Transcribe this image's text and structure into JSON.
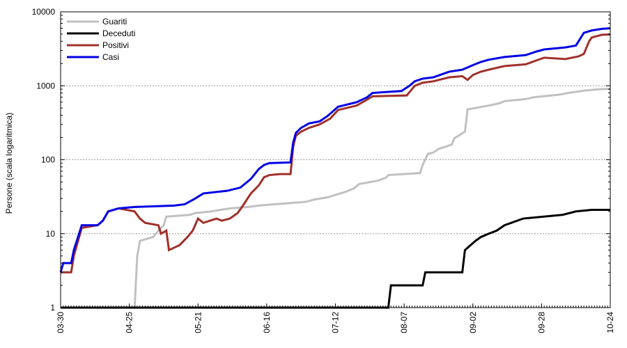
{
  "chart_data": {
    "type": "line",
    "y_scale": "log",
    "ylim": [
      1,
      10000
    ],
    "ylabel": "Persone (scala logaritmica)",
    "xlabel": "",
    "title": "",
    "grid": "horizontal dotted",
    "legend_position": "top-left",
    "y_ticks": [
      1,
      10,
      100,
      1000,
      10000
    ],
    "y_tick_labels": [
      "1",
      "10",
      "100",
      "1000",
      "10000"
    ],
    "x_range": [
      "2020-03-30",
      "2020-10-24"
    ],
    "x_tick_dates": [
      "2020-03-30",
      "2020-04-25",
      "2020-05-21",
      "2020-06-16",
      "2020-07-12",
      "2020-08-07",
      "2020-09-02",
      "2020-09-28",
      "2020-10-24"
    ],
    "x_tick_labels": [
      "03-30",
      "04-25",
      "05-21",
      "06-16",
      "07-12",
      "08-07",
      "09-02",
      "09-28",
      "10-24"
    ],
    "series": [
      {
        "name": "Guariti",
        "color": "#c0c0c0",
        "points": [
          [
            "2020-03-30",
            1
          ],
          [
            "2020-04-27",
            1
          ],
          [
            "2020-04-28",
            5
          ],
          [
            "2020-04-29",
            8
          ],
          [
            "2020-05-04",
            9
          ],
          [
            "2020-05-06",
            11
          ],
          [
            "2020-05-08",
            13
          ],
          [
            "2020-05-09",
            17
          ],
          [
            "2020-05-18",
            18
          ],
          [
            "2020-05-20",
            19
          ],
          [
            "2020-05-26",
            20
          ],
          [
            "2020-06-02",
            22
          ],
          [
            "2020-06-09",
            23
          ],
          [
            "2020-06-13",
            24
          ],
          [
            "2020-06-19",
            25
          ],
          [
            "2020-07-01",
            27
          ],
          [
            "2020-07-04",
            29
          ],
          [
            "2020-07-09",
            31
          ],
          [
            "2020-07-16",
            37
          ],
          [
            "2020-07-19",
            41
          ],
          [
            "2020-07-21",
            47
          ],
          [
            "2020-07-28",
            52
          ],
          [
            "2020-07-31",
            57
          ],
          [
            "2020-08-01",
            62
          ],
          [
            "2020-08-13",
            66
          ],
          [
            "2020-08-14",
            85
          ],
          [
            "2020-08-16",
            120
          ],
          [
            "2020-08-18",
            125
          ],
          [
            "2020-08-20",
            140
          ],
          [
            "2020-08-25",
            160
          ],
          [
            "2020-08-26",
            195
          ],
          [
            "2020-08-30",
            240
          ],
          [
            "2020-08-31",
            480
          ],
          [
            "2020-09-08",
            540
          ],
          [
            "2020-09-12",
            580
          ],
          [
            "2020-09-14",
            620
          ],
          [
            "2020-09-22",
            660
          ],
          [
            "2020-09-25",
            700
          ],
          [
            "2020-10-05",
            760
          ],
          [
            "2020-10-08",
            800
          ],
          [
            "2020-10-14",
            860
          ],
          [
            "2020-10-20",
            900
          ],
          [
            "2020-10-24",
            910
          ]
        ]
      },
      {
        "name": "Deceduti",
        "color": "#000000",
        "points": [
          [
            "2020-03-30",
            1
          ],
          [
            "2020-08-01",
            1
          ],
          [
            "2020-08-02",
            2
          ],
          [
            "2020-08-14",
            2
          ],
          [
            "2020-08-15",
            3
          ],
          [
            "2020-08-29",
            3
          ],
          [
            "2020-08-30",
            6
          ],
          [
            "2020-09-03",
            8
          ],
          [
            "2020-09-05",
            9
          ],
          [
            "2020-09-08",
            10
          ],
          [
            "2020-09-11",
            11
          ],
          [
            "2020-09-14",
            13
          ],
          [
            "2020-09-21",
            16
          ],
          [
            "2020-10-06",
            18
          ],
          [
            "2020-10-11",
            20
          ],
          [
            "2020-10-17",
            21
          ],
          [
            "2020-10-24",
            21
          ]
        ]
      },
      {
        "name": "Positivi",
        "color": "#a0302a",
        "points": [
          [
            "2020-03-30",
            3
          ],
          [
            "2020-04-03",
            3
          ],
          [
            "2020-04-04",
            5
          ],
          [
            "2020-04-07",
            12
          ],
          [
            "2020-04-13",
            13
          ],
          [
            "2020-04-15",
            15
          ],
          [
            "2020-04-17",
            20
          ],
          [
            "2020-04-21",
            22
          ],
          [
            "2020-04-27",
            20
          ],
          [
            "2020-04-29",
            16
          ],
          [
            "2020-05-01",
            14
          ],
          [
            "2020-05-06",
            13
          ],
          [
            "2020-05-07",
            10
          ],
          [
            "2020-05-09",
            11
          ],
          [
            "2020-05-10",
            6
          ],
          [
            "2020-05-14",
            7
          ],
          [
            "2020-05-17",
            9
          ],
          [
            "2020-05-19",
            11
          ],
          [
            "2020-05-21",
            16
          ],
          [
            "2020-05-23",
            14
          ],
          [
            "2020-05-28",
            16
          ],
          [
            "2020-05-30",
            15
          ],
          [
            "2020-06-02",
            16
          ],
          [
            "2020-06-05",
            19
          ],
          [
            "2020-06-07",
            24
          ],
          [
            "2020-06-10",
            35
          ],
          [
            "2020-06-13",
            45
          ],
          [
            "2020-06-15",
            58
          ],
          [
            "2020-06-17",
            62
          ],
          [
            "2020-06-21",
            64
          ],
          [
            "2020-06-25",
            64
          ],
          [
            "2020-06-26",
            150
          ],
          [
            "2020-06-27",
            210
          ],
          [
            "2020-06-29",
            240
          ],
          [
            "2020-07-02",
            270
          ],
          [
            "2020-07-06",
            300
          ],
          [
            "2020-07-10",
            360
          ],
          [
            "2020-07-13",
            470
          ],
          [
            "2020-07-20",
            540
          ],
          [
            "2020-07-24",
            650
          ],
          [
            "2020-07-26",
            720
          ],
          [
            "2020-08-08",
            740
          ],
          [
            "2020-08-11",
            1000
          ],
          [
            "2020-08-14",
            1100
          ],
          [
            "2020-08-18",
            1150
          ],
          [
            "2020-08-24",
            1300
          ],
          [
            "2020-08-29",
            1350
          ],
          [
            "2020-08-31",
            1200
          ],
          [
            "2020-09-02",
            1400
          ],
          [
            "2020-09-05",
            1550
          ],
          [
            "2020-09-08",
            1650
          ],
          [
            "2020-09-14",
            1850
          ],
          [
            "2020-09-22",
            1950
          ],
          [
            "2020-09-26",
            2200
          ],
          [
            "2020-09-29",
            2400
          ],
          [
            "2020-10-07",
            2300
          ],
          [
            "2020-10-12",
            2500
          ],
          [
            "2020-10-14",
            2700
          ],
          [
            "2020-10-16",
            4000
          ],
          [
            "2020-10-17",
            4500
          ],
          [
            "2020-10-21",
            4900
          ],
          [
            "2020-10-24",
            4950
          ]
        ]
      },
      {
        "name": "Casi",
        "color": "#0000e6",
        "points": [
          [
            "2020-03-30",
            3
          ],
          [
            "2020-03-31",
            4
          ],
          [
            "2020-04-03",
            4
          ],
          [
            "2020-04-04",
            6
          ],
          [
            "2020-04-07",
            13
          ],
          [
            "2020-04-13",
            13
          ],
          [
            "2020-04-15",
            15
          ],
          [
            "2020-04-17",
            20
          ],
          [
            "2020-04-21",
            22
          ],
          [
            "2020-04-27",
            23
          ],
          [
            "2020-05-12",
            24
          ],
          [
            "2020-05-16",
            25
          ],
          [
            "2020-05-20",
            30
          ],
          [
            "2020-05-23",
            35
          ],
          [
            "2020-06-01",
            38
          ],
          [
            "2020-06-06",
            42
          ],
          [
            "2020-06-10",
            55
          ],
          [
            "2020-06-13",
            75
          ],
          [
            "2020-06-15",
            85
          ],
          [
            "2020-06-17",
            90
          ],
          [
            "2020-06-25",
            92
          ],
          [
            "2020-06-26",
            170
          ],
          [
            "2020-06-27",
            230
          ],
          [
            "2020-06-29",
            270
          ],
          [
            "2020-07-02",
            310
          ],
          [
            "2020-07-06",
            330
          ],
          [
            "2020-07-09",
            390
          ],
          [
            "2020-07-13",
            520
          ],
          [
            "2020-07-20",
            600
          ],
          [
            "2020-07-24",
            700
          ],
          [
            "2020-07-26",
            800
          ],
          [
            "2020-08-06",
            850
          ],
          [
            "2020-08-09",
            1000
          ],
          [
            "2020-08-11",
            1150
          ],
          [
            "2020-08-14",
            1250
          ],
          [
            "2020-08-18",
            1300
          ],
          [
            "2020-08-24",
            1550
          ],
          [
            "2020-08-29",
            1650
          ],
          [
            "2020-09-02",
            1900
          ],
          [
            "2020-09-05",
            2100
          ],
          [
            "2020-09-08",
            2250
          ],
          [
            "2020-09-14",
            2450
          ],
          [
            "2020-09-22",
            2600
          ],
          [
            "2020-09-26",
            2900
          ],
          [
            "2020-09-29",
            3100
          ],
          [
            "2020-10-07",
            3300
          ],
          [
            "2020-10-11",
            3500
          ],
          [
            "2020-10-14",
            5200
          ],
          [
            "2020-10-17",
            5600
          ],
          [
            "2020-10-21",
            5900
          ],
          [
            "2020-10-24",
            6000
          ]
        ]
      }
    ]
  }
}
